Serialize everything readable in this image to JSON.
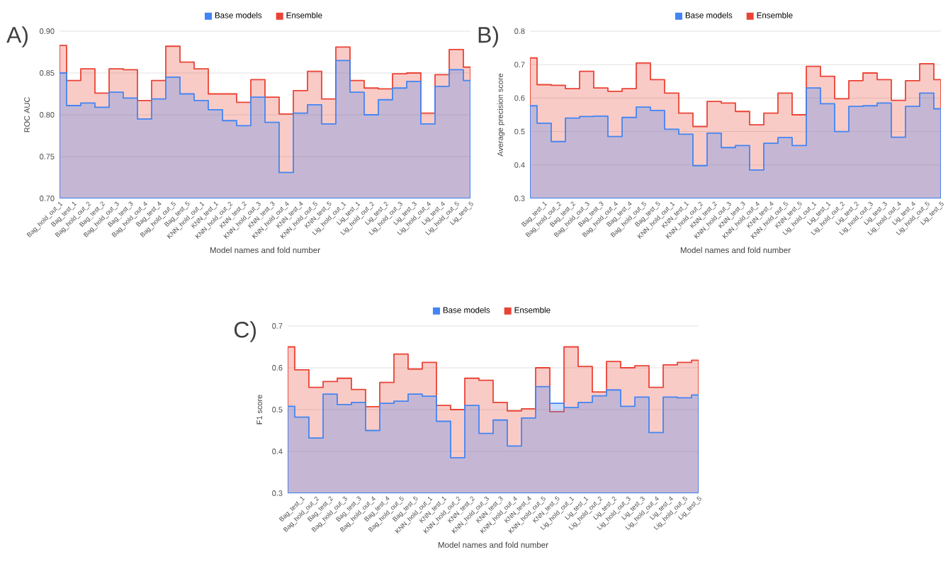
{
  "chart_data": [
    {
      "type": "area",
      "annotations": [
        "A)"
      ],
      "xlabel": "Model names and fold number",
      "ylabel": "ROC AUC",
      "legend": "top",
      "grid": "y",
      "categories": [
        "Bag_hold_out_1",
        "Bag_test_1",
        "Bag_hold_out_2",
        "Bag_test_2",
        "Bag_hold_out_3",
        "Bag_test_3",
        "Bag_hold_out_4",
        "Bag_test_4",
        "Bag_hold_out_5",
        "Bag_test_5",
        "KNN_hold_out_1",
        "KNN_test_1",
        "KNN_hold_out_2",
        "KNN_test_2",
        "KNN_hold_out_3",
        "KNN_test_3",
        "KNN_hold_out_4",
        "KNN_test_4",
        "KNN_hold_out_5",
        "KNN_test_5",
        "Lig_hold_out_1",
        "Lig_test_1",
        "Lig_hold_out_2",
        "Lig_test_2",
        "Lig_hold_out_3",
        "Lig_test_3",
        "Lig_hold_out_4",
        "Lig_test_4",
        "Lig_hold_out_5",
        "Lig_test_5"
      ],
      "ylim": [
        0.7,
        0.9
      ],
      "yticks": [
        {
          "value": 0.7,
          "label": "0.70"
        },
        0.75,
        {
          "value": 0.8,
          "label": "0.80"
        },
        0.85,
        {
          "value": 0.9,
          "label": "0.90"
        }
      ],
      "series": [
        {
          "name": "Base models",
          "color": "#4285f4",
          "values": [
            0.85,
            0.811,
            0.814,
            0.809,
            0.827,
            0.82,
            0.795,
            0.819,
            0.845,
            0.825,
            0.817,
            0.806,
            0.793,
            0.787,
            0.821,
            0.791,
            0.731,
            0.802,
            0.812,
            0.789,
            0.865,
            0.827,
            0.8,
            0.818,
            0.832,
            0.84,
            0.789,
            0.834,
            0.854,
            0.841
          ]
        },
        {
          "name": "Ensemble",
          "color": "#ea4335",
          "values": [
            0.883,
            0.841,
            0.855,
            0.826,
            0.855,
            0.854,
            0.817,
            0.841,
            0.882,
            0.863,
            0.855,
            0.825,
            0.825,
            0.815,
            0.842,
            0.821,
            0.801,
            0.829,
            0.852,
            0.819,
            0.881,
            0.841,
            0.832,
            0.831,
            0.849,
            0.85,
            0.802,
            0.848,
            0.878,
            0.857
          ]
        }
      ]
    },
    {
      "type": "area",
      "annotations": [
        "B)"
      ],
      "xlabel": "Model names and fold number",
      "ylabel": "Average precision score",
      "legend": "top",
      "grid": "y",
      "categories": [
        null,
        "Bag_test_1",
        "Bag_hold_out_2",
        "Bag_test_2",
        "Bag_hold_out_3",
        "Bag_test_3",
        "Bag_hold_out_4",
        "Bag_test_4",
        "Bag_hold_out_5",
        "Bag_test_5",
        "KNN_hold_out_1",
        "KNN_test_1",
        "KNN_hold_out_2",
        "KNN_test_2",
        "KNN_hold_out_3",
        "KNN_test_3",
        "KNN_hold_out_4",
        "KNN_test_4",
        "KNN_hold_out_5",
        "KNN_test_5",
        "Lig_hold_out_1",
        "Lig_test_1",
        "Lig_hold_out_2",
        "Lig_test_2",
        "Lig_hold_out_3",
        "Lig_test_3",
        "Lig_hold_out_4",
        "Lig_test_4",
        "Lig_hold_out_5",
        "Lig_test_5"
      ],
      "ylim": [
        0.3,
        0.8
      ],
      "yticks": [
        0.3,
        0.4,
        0.5,
        0.6,
        0.7,
        0.8
      ],
      "series": [
        {
          "name": "Base models",
          "color": "#4285f4",
          "values": [
            0.577,
            0.525,
            0.47,
            0.54,
            0.545,
            0.546,
            0.485,
            0.542,
            0.573,
            0.563,
            0.507,
            0.492,
            0.398,
            0.495,
            0.452,
            0.458,
            0.385,
            0.465,
            0.482,
            0.458,
            0.63,
            0.583,
            0.5,
            0.575,
            0.577,
            0.585,
            0.483,
            0.575,
            0.615,
            0.568
          ]
        },
        {
          "name": "Ensemble",
          "color": "#ea4335",
          "values": [
            0.72,
            0.64,
            0.638,
            0.628,
            0.68,
            0.63,
            0.62,
            0.628,
            0.705,
            0.655,
            0.615,
            0.555,
            0.515,
            0.59,
            0.585,
            0.56,
            0.52,
            0.555,
            0.615,
            0.55,
            0.695,
            0.665,
            0.598,
            0.652,
            0.675,
            0.655,
            0.593,
            0.652,
            0.703,
            0.655
          ]
        }
      ]
    },
    {
      "type": "area",
      "annotations": [
        "C)"
      ],
      "xlabel": "Model names and fold number",
      "ylabel": "F1 score",
      "legend": "top",
      "grid": "y",
      "categories": [
        null,
        "Bag_test_1",
        "Bag_hold_out_2",
        "Bag_test_2",
        "Bag_hold_out_3",
        "Bag_test_3",
        "Bag_hold_out_4",
        "Bag_test_4",
        "Bag_hold_out_5",
        "Bag_test_5",
        "KNN_hold_out_1",
        "KNN_test_1",
        "KNN_hold_out_2",
        "KNN_test_2",
        "KNN_hold_out_3",
        "KNN_test_3",
        "KNN_hold_out_4",
        "KNN_test_4",
        "KNN_hold_out_5",
        "KNN_test_5",
        "Lig_hold_out_1",
        "Lig_test_1",
        "Lig_hold_out_2",
        "Lig_test_2",
        "Lig_hold_out_3",
        "Lig_test_3",
        "Lig_hold_out_4",
        "Lig_test_4",
        "Lig_hold_out_5",
        "Lig_test_5"
      ],
      "ylim": [
        0.3,
        0.7
      ],
      "yticks": [
        0.3,
        0.4,
        0.5,
        0.6,
        0.7
      ],
      "series": [
        {
          "name": "Base models",
          "color": "#4285f4",
          "values": [
            0.508,
            0.482,
            0.432,
            0.537,
            0.512,
            0.517,
            0.45,
            0.515,
            0.52,
            0.537,
            0.532,
            0.472,
            0.385,
            0.51,
            0.443,
            0.475,
            0.413,
            0.48,
            0.555,
            0.515,
            0.505,
            0.517,
            0.533,
            0.547,
            0.508,
            0.53,
            0.445,
            0.53,
            0.528,
            0.535
          ]
        },
        {
          "name": "Ensemble",
          "color": "#ea4335",
          "values": [
            0.65,
            0.595,
            0.553,
            0.567,
            0.575,
            0.548,
            0.507,
            0.565,
            0.633,
            0.597,
            0.613,
            0.51,
            0.5,
            0.575,
            0.57,
            0.517,
            0.497,
            0.502,
            0.6,
            0.495,
            0.65,
            0.603,
            0.542,
            0.615,
            0.6,
            0.605,
            0.553,
            0.607,
            0.613,
            0.618
          ]
        }
      ]
    }
  ]
}
